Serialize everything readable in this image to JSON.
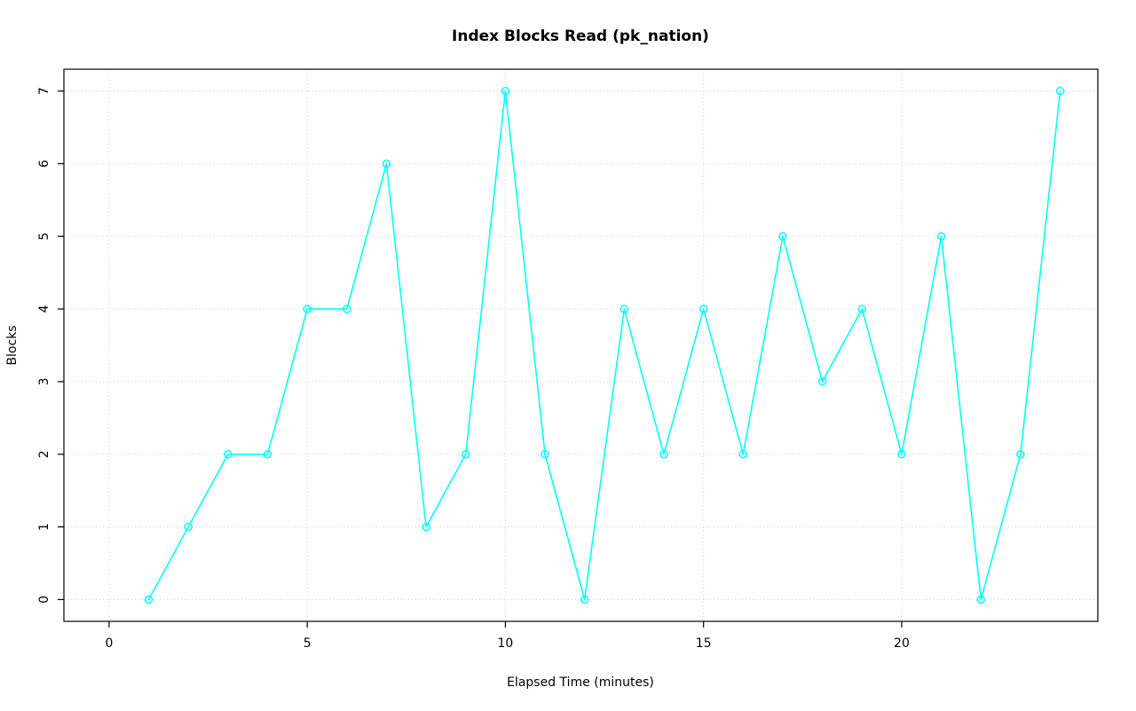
{
  "chart_data": {
    "type": "line",
    "title": "Index Blocks Read (pk_nation)",
    "xlabel": "Elapsed Time (minutes)",
    "ylabel": "Blocks",
    "x": [
      1,
      2,
      3,
      4,
      5,
      6,
      7,
      8,
      9,
      10,
      11,
      12,
      13,
      14,
      15,
      16,
      17,
      18,
      19,
      20,
      21,
      22,
      23,
      24
    ],
    "y": [
      0,
      1,
      2,
      2,
      4,
      4,
      6,
      1,
      2,
      7,
      2,
      0,
      4,
      2,
      4,
      2,
      5,
      3,
      4,
      2,
      5,
      0,
      2,
      7
    ],
    "x_ticks": [
      0,
      5,
      10,
      15,
      20
    ],
    "y_ticks": [
      0,
      1,
      2,
      3,
      4,
      5,
      6,
      7
    ],
    "xlim": [
      -1.14,
      24.95
    ],
    "ylim": [
      -0.3,
      7.3
    ],
    "marker": "open-circle",
    "line_color": "#00ffff",
    "grid": true,
    "grid_style": "dotted",
    "grid_color": "#d3d3d3",
    "axis_color": "#000000",
    "legend_position": "none"
  }
}
